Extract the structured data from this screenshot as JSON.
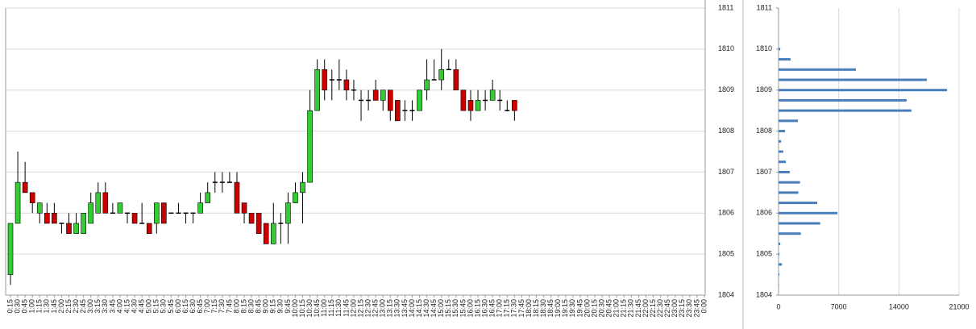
{
  "chart_data": [
    {
      "type": "candlestick",
      "categories": [
        "0:15",
        "0:30",
        "0:45",
        "1:00",
        "1:15",
        "1:30",
        "1:45",
        "2:00",
        "2:15",
        "2:30",
        "2:45",
        "3:00",
        "3:15",
        "3:30",
        "3:45",
        "4:00",
        "4:15",
        "4:30",
        "4:45",
        "5:00",
        "5:15",
        "5:30",
        "5:45",
        "6:00",
        "6:15",
        "6:30",
        "6:45",
        "7:00",
        "7:15",
        "7:30",
        "7:45",
        "8:00",
        "8:15",
        "8:30",
        "8:45",
        "9:00",
        "9:15",
        "9:30",
        "9:45",
        "10:00",
        "10:15",
        "10:30",
        "10:45",
        "11:00",
        "11:15",
        "11:30",
        "11:45",
        "12:00",
        "12:15",
        "12:30",
        "12:45",
        "13:00",
        "13:15",
        "13:30",
        "13:45",
        "14:00",
        "14:15",
        "14:30",
        "14:45",
        "15:00",
        "15:15",
        "15:30",
        "15:45",
        "16:00",
        "16:15",
        "16:30",
        "16:45",
        "17:00",
        "17:15",
        "17:30",
        "17:45",
        "18:00",
        "18:15",
        "18:30",
        "18:45",
        "19:00",
        "19:15",
        "19:30",
        "19:45",
        "20:00",
        "20:15",
        "20:30",
        "20:45",
        "21:00",
        "21:15",
        "21:30",
        "21:45",
        "22:00",
        "22:15",
        "22:30",
        "22:45",
        "23:00",
        "23:15",
        "23:30",
        "23:45",
        "0:00"
      ],
      "open": [
        1804.5,
        1805.75,
        1806.75,
        1806.5,
        1806,
        1806,
        1806,
        1805.75,
        1805.75,
        1805.5,
        1805.5,
        1805.75,
        1806,
        1806.5,
        1806,
        1806,
        1806,
        1806,
        1805.75,
        1805.75,
        1805.75,
        1806.25,
        1806,
        1806,
        1806,
        1806,
        1806,
        1806.25,
        1806.75,
        1806.75,
        1806.75,
        1806.75,
        1806.25,
        1806,
        1806,
        1805.75,
        1805.25,
        1805.75,
        1805.75,
        1806.25,
        1806.5,
        1806.75,
        1808.5,
        1809.5,
        1809.25,
        1809.25,
        1809.25,
        1809,
        1808.75,
        1808.75,
        1809,
        1808.75,
        1809,
        1808.75,
        1808.5,
        1808.5,
        1808.5,
        1809,
        1809.25,
        1809.25,
        1809.5,
        1809.5,
        1809,
        1808.75,
        1808.5,
        1808.75,
        1808.75,
        1808.75,
        1808.5,
        1808.75,
        null,
        null,
        null,
        null,
        null,
        null,
        null,
        null,
        null,
        null,
        null,
        null,
        null,
        null,
        null,
        null,
        null,
        null,
        null,
        null,
        null,
        null,
        null,
        null,
        null,
        null
      ],
      "high": [
        1805.75,
        1807.5,
        1807.25,
        1806.5,
        1806.25,
        1806.25,
        1806.25,
        1805.75,
        1806,
        1806,
        1806,
        1806.5,
        1806.75,
        1806.75,
        1806.25,
        1806.25,
        1806,
        1806,
        1806.25,
        1805.75,
        1806.25,
        1806.25,
        1806,
        1806.25,
        1806,
        1806,
        1806.5,
        1806.75,
        1807,
        1807,
        1807,
        1807,
        1806.25,
        1806,
        1806,
        1805.75,
        1806.25,
        1806,
        1806.5,
        1806.75,
        1807,
        1809,
        1809.75,
        1809.75,
        1809.5,
        1809.75,
        1809.5,
        1809.25,
        1809,
        1809,
        1809.25,
        1809,
        1809,
        1808.75,
        1808.75,
        1808.75,
        1809,
        1809.75,
        1809.75,
        1810,
        1809.75,
        1809.75,
        1809,
        1809,
        1809,
        1809,
        1809.25,
        1809,
        1808.75,
        1808.75,
        null,
        null,
        null,
        null,
        null,
        null,
        null,
        null,
        null,
        null,
        null,
        null,
        null,
        null,
        null,
        null,
        null,
        null,
        null,
        null,
        null,
        null,
        null,
        null,
        null,
        null
      ],
      "low": [
        1804.25,
        1805.75,
        1806.5,
        1806,
        1805.75,
        1805.75,
        1805.75,
        1805.5,
        1805.5,
        1805.5,
        1805.5,
        1805.75,
        1806,
        1806,
        1806,
        1806,
        1805.75,
        1805.75,
        1805.75,
        1805.5,
        1805.5,
        1805.75,
        1806,
        1806,
        1805.75,
        1805.75,
        1806,
        1806.25,
        1806.5,
        1806.5,
        1806.75,
        1806,
        1805.75,
        1805.75,
        1805.5,
        1805.25,
        1805.25,
        1805.25,
        1805.25,
        1806.25,
        1805.75,
        1806.75,
        1808.5,
        1808.75,
        1808.75,
        1809,
        1808.75,
        1808.75,
        1808.25,
        1808.5,
        1808.75,
        1808.5,
        1808.25,
        1808.25,
        1808.25,
        1808.25,
        1808.5,
        1808.75,
        1809.25,
        1809,
        1809.5,
        1809,
        1808.5,
        1808.25,
        1808.5,
        1808.5,
        1808.75,
        1808.5,
        1808.5,
        1808.25,
        null,
        null,
        null,
        null,
        null,
        null,
        null,
        null,
        null,
        null,
        null,
        null,
        null,
        null,
        null,
        null,
        null,
        null,
        null,
        null,
        null,
        null,
        null,
        null,
        null,
        null
      ],
      "close": [
        1805.75,
        1806.75,
        1806.5,
        1806.25,
        1806.25,
        1805.75,
        1805.75,
        1805.75,
        1805.5,
        1805.75,
        1806,
        1806.25,
        1806.5,
        1806,
        1806,
        1806.25,
        1806,
        1805.75,
        1805.75,
        1805.5,
        1806.25,
        1805.75,
        1806,
        1806,
        1806,
        1806,
        1806.25,
        1806.5,
        1806.75,
        1806.75,
        1806.75,
        1806,
        1806,
        1805.75,
        1805.5,
        1805.25,
        1805.75,
        1805.75,
        1806.25,
        1806.5,
        1806.75,
        1808.5,
        1809.5,
        1809,
        1809.25,
        1809.25,
        1809,
        1809,
        1808.75,
        1808.75,
        1808.75,
        1809,
        1808.5,
        1808.25,
        1808.5,
        1808.5,
        1809,
        1809.25,
        1809.25,
        1809.5,
        1809.5,
        1809,
        1808.5,
        1808.5,
        1808.75,
        1808.75,
        1809,
        1808.75,
        1808.5,
        1808.5,
        null,
        null,
        null,
        null,
        null,
        null,
        null,
        null,
        null,
        null,
        null,
        null,
        null,
        null,
        null,
        null,
        null,
        null,
        null,
        null,
        null,
        null,
        null,
        null,
        null,
        null
      ],
      "up_color": "#33cc33",
      "down_color": "#cc0000",
      "ylim": [
        1804,
        1811
      ],
      "yticks": [
        1804,
        1805,
        1806,
        1807,
        1808,
        1809,
        1810,
        1811
      ],
      "grid": true
    },
    {
      "type": "barh",
      "y": [
        1804.25,
        1804.5,
        1804.75,
        1805,
        1805.25,
        1805.5,
        1805.75,
        1806,
        1806.25,
        1806.5,
        1806.75,
        1807,
        1807.25,
        1807.5,
        1807.75,
        1808,
        1808.25,
        1808.5,
        1808.75,
        1809,
        1809.25,
        1809.5,
        1809.75,
        1810
      ],
      "values": [
        50,
        100,
        400,
        100,
        200,
        2600,
        4850,
        6850,
        4500,
        2300,
        2500,
        1300,
        850,
        550,
        300,
        750,
        2250,
        15450,
        14900,
        19600,
        17250,
        9000,
        1400,
        200
      ],
      "color": "#4a7ebb",
      "ylim": [
        1804,
        1811
      ],
      "yticks": [
        1804,
        1805,
        1806,
        1807,
        1808,
        1809,
        1810,
        1811
      ],
      "xlim": [
        0,
        21000
      ],
      "xticks": [
        0,
        7000,
        14000,
        21000
      ],
      "grid": true
    }
  ]
}
